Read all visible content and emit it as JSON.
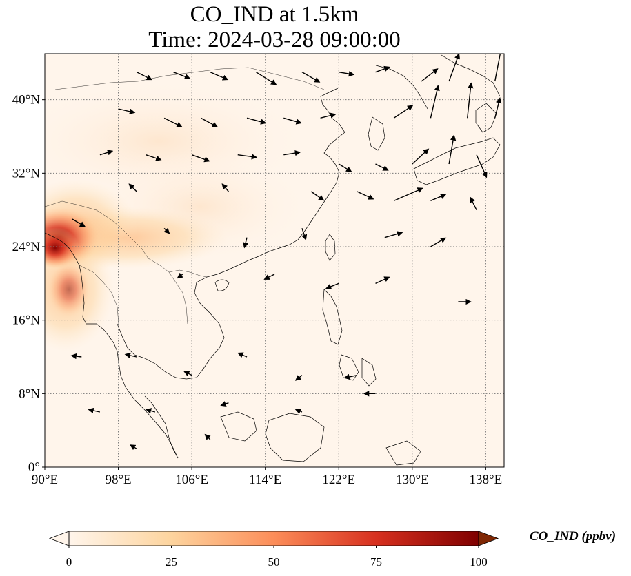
{
  "title": "CO_IND at 1.5km",
  "subtitle": "Time: 2024-03-28 09:00:00",
  "map": {
    "lon_range": [
      90,
      140
    ],
    "lat_range": [
      0,
      45
    ],
    "lon_ticks": [
      {
        "value": 90,
        "label": "90°E"
      },
      {
        "value": 98,
        "label": "98°E"
      },
      {
        "value": 106,
        "label": "106°E"
      },
      {
        "value": 114,
        "label": "114°E"
      },
      {
        "value": 122,
        "label": "122°E"
      },
      {
        "value": 130,
        "label": "130°E"
      },
      {
        "value": 138,
        "label": "138°E"
      }
    ],
    "lat_ticks": [
      {
        "value": 0,
        "label": "0°"
      },
      {
        "value": 8,
        "label": "8°N"
      },
      {
        "value": 16,
        "label": "16°N"
      },
      {
        "value": 24,
        "label": "24°N"
      },
      {
        "value": 32,
        "label": "32°N"
      },
      {
        "value": 40,
        "label": "40°N"
      }
    ],
    "gridlines": true
  },
  "colorbar": {
    "label": "CO_IND (ppbv)",
    "min": 0,
    "max": 100,
    "ticks": [
      0,
      25,
      50,
      75,
      100
    ],
    "extend": "both",
    "colors": [
      "#fff5eb",
      "#fdd0a2",
      "#fd8d3c",
      "#d94801",
      "#7f2704"
    ]
  },
  "chart_data": {
    "type": "heatmap",
    "variable": "CO_IND",
    "units": "ppbv",
    "hotspots": [
      {
        "lon": 91.5,
        "lat": 25,
        "value": 95
      },
      {
        "lon": 92.5,
        "lat": 21,
        "value": 55
      },
      {
        "lon": 95,
        "lat": 26,
        "value": 35
      },
      {
        "lon": 101,
        "lat": 24,
        "value": 20
      },
      {
        "lon": 108,
        "lat": 35,
        "value": 10
      }
    ],
    "wind_vectors": [
      {
        "lon": 100,
        "lat": 43,
        "u": 1.2,
        "v": -0.6
      },
      {
        "lon": 104,
        "lat": 43,
        "u": 1.3,
        "v": -0.5
      },
      {
        "lon": 108,
        "lat": 43,
        "u": 1.4,
        "v": -0.6
      },
      {
        "lon": 113,
        "lat": 43,
        "u": 1.6,
        "v": -1.0
      },
      {
        "lon": 118,
        "lat": 43,
        "u": 1.4,
        "v": -0.8
      },
      {
        "lon": 122,
        "lat": 43,
        "u": 1.2,
        "v": -0.2
      },
      {
        "lon": 126,
        "lat": 43,
        "u": 1.1,
        "v": 0.4
      },
      {
        "lon": 131,
        "lat": 42,
        "u": 1.3,
        "v": 1.0
      },
      {
        "lon": 134,
        "lat": 42,
        "u": 0.8,
        "v": 2.2
      },
      {
        "lon": 139,
        "lat": 42,
        "u": 0.5,
        "v": 2.6
      },
      {
        "lon": 98,
        "lat": 39,
        "u": 1.3,
        "v": -0.3
      },
      {
        "lon": 103,
        "lat": 38,
        "u": 1.4,
        "v": -0.7
      },
      {
        "lon": 107,
        "lat": 38,
        "u": 1.3,
        "v": -0.7
      },
      {
        "lon": 112,
        "lat": 38,
        "u": 1.5,
        "v": -0.4
      },
      {
        "lon": 116,
        "lat": 38,
        "u": 1.4,
        "v": -0.4
      },
      {
        "lon": 120,
        "lat": 38,
        "u": 1.2,
        "v": 0.3
      },
      {
        "lon": 128,
        "lat": 38,
        "u": 1.5,
        "v": 1.0
      },
      {
        "lon": 132,
        "lat": 38,
        "u": 0.6,
        "v": 2.6
      },
      {
        "lon": 136,
        "lat": 38,
        "u": 0.3,
        "v": 2.8
      },
      {
        "lon": 139,
        "lat": 38,
        "u": 0.4,
        "v": 1.6
      },
      {
        "lon": 96,
        "lat": 34,
        "u": 1.0,
        "v": 0.3
      },
      {
        "lon": 101,
        "lat": 34,
        "u": 1.2,
        "v": -0.4
      },
      {
        "lon": 106,
        "lat": 34,
        "u": 1.4,
        "v": -0.5
      },
      {
        "lon": 111,
        "lat": 34,
        "u": 1.5,
        "v": -0.2
      },
      {
        "lon": 116,
        "lat": 34,
        "u": 1.3,
        "v": 0.2
      },
      {
        "lon": 122,
        "lat": 33,
        "u": 1.0,
        "v": -0.6
      },
      {
        "lon": 126,
        "lat": 33,
        "u": 1.0,
        "v": -0.5
      },
      {
        "lon": 130,
        "lat": 33,
        "u": 1.3,
        "v": 1.2
      },
      {
        "lon": 134,
        "lat": 33,
        "u": 0.4,
        "v": 2.3
      },
      {
        "lon": 137,
        "lat": 34,
        "u": 0.8,
        "v": -1.8
      },
      {
        "lon": 100,
        "lat": 30,
        "u": -0.6,
        "v": 0.6
      },
      {
        "lon": 110,
        "lat": 30,
        "u": -0.5,
        "v": 0.6
      },
      {
        "lon": 119,
        "lat": 30,
        "u": 1.0,
        "v": -0.7
      },
      {
        "lon": 124,
        "lat": 30,
        "u": 1.3,
        "v": -0.6
      },
      {
        "lon": 128,
        "lat": 29,
        "u": 2.3,
        "v": 1.0
      },
      {
        "lon": 132,
        "lat": 29,
        "u": 1.2,
        "v": 0.5
      },
      {
        "lon": 137,
        "lat": 28,
        "u": -0.5,
        "v": 1.0
      },
      {
        "lon": 93,
        "lat": 27,
        "u": 1.0,
        "v": -0.6
      },
      {
        "lon": 103,
        "lat": 26,
        "u": 0.4,
        "v": -0.4
      },
      {
        "lon": 112,
        "lat": 25,
        "u": -0.2,
        "v": -0.8
      },
      {
        "lon": 118,
        "lat": 26,
        "u": 0.3,
        "v": -0.9
      },
      {
        "lon": 127,
        "lat": 25,
        "u": 1.4,
        "v": 0.4
      },
      {
        "lon": 132,
        "lat": 24,
        "u": 1.2,
        "v": 0.7
      },
      {
        "lon": 105,
        "lat": 21,
        "u": -0.4,
        "v": -0.3
      },
      {
        "lon": 115,
        "lat": 21,
        "u": -0.8,
        "v": -0.4
      },
      {
        "lon": 122,
        "lat": 20,
        "u": -1.0,
        "v": -0.4
      },
      {
        "lon": 126,
        "lat": 20,
        "u": 1.1,
        "v": 0.5
      },
      {
        "lon": 135,
        "lat": 18,
        "u": 1.0,
        "v": 0.0
      },
      {
        "lon": 94,
        "lat": 12,
        "u": -0.8,
        "v": 0.1
      },
      {
        "lon": 100,
        "lat": 12,
        "u": -0.9,
        "v": 0.2
      },
      {
        "lon": 106,
        "lat": 10,
        "u": -0.6,
        "v": 0.3
      },
      {
        "lon": 112,
        "lat": 12,
        "u": -0.7,
        "v": 0.3
      },
      {
        "lon": 118,
        "lat": 10,
        "u": -0.5,
        "v": -0.4
      },
      {
        "lon": 124,
        "lat": 10,
        "u": -1.0,
        "v": -0.2
      },
      {
        "lon": 96,
        "lat": 6,
        "u": -0.9,
        "v": 0.2
      },
      {
        "lon": 102,
        "lat": 6,
        "u": -0.7,
        "v": 0.2
      },
      {
        "lon": 110,
        "lat": 7,
        "u": -0.6,
        "v": -0.2
      },
      {
        "lon": 118,
        "lat": 6,
        "u": -0.5,
        "v": 0.2
      },
      {
        "lon": 126,
        "lat": 8,
        "u": -0.9,
        "v": 0.0
      },
      {
        "lon": 100,
        "lat": 2,
        "u": -0.5,
        "v": 0.3
      },
      {
        "lon": 108,
        "lat": 3,
        "u": -0.4,
        "v": 0.4
      }
    ]
  }
}
